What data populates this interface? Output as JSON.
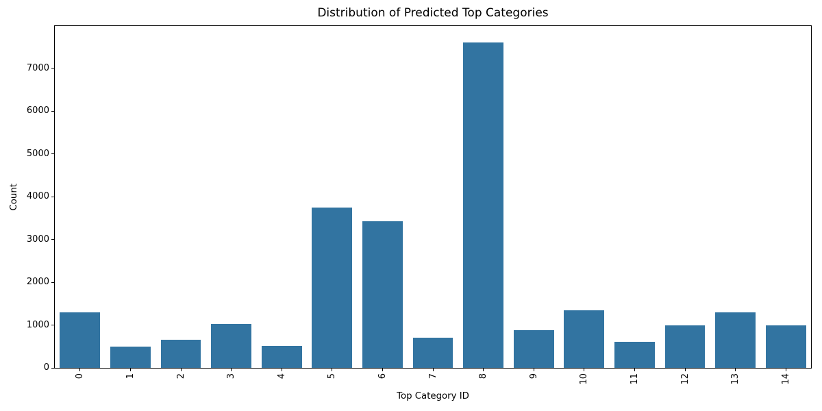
{
  "chart_data": {
    "type": "bar",
    "title": "Distribution of Predicted Top Categories",
    "xlabel": "Top Category ID",
    "ylabel": "Count",
    "categories": [
      "0",
      "1",
      "2",
      "3",
      "4",
      "5",
      "6",
      "7",
      "8",
      "9",
      "10",
      "11",
      "12",
      "13",
      "14"
    ],
    "values": [
      1290,
      500,
      650,
      1020,
      520,
      3750,
      3420,
      710,
      7610,
      880,
      1340,
      610,
      985,
      1290,
      995
    ],
    "ylim": [
      0,
      7990
    ],
    "yticks": [
      0,
      1000,
      2000,
      3000,
      4000,
      5000,
      6000,
      7000
    ],
    "bar_color": "#3274a1",
    "grid": false,
    "legend": "none",
    "x_tick_rotation_deg": 90
  }
}
